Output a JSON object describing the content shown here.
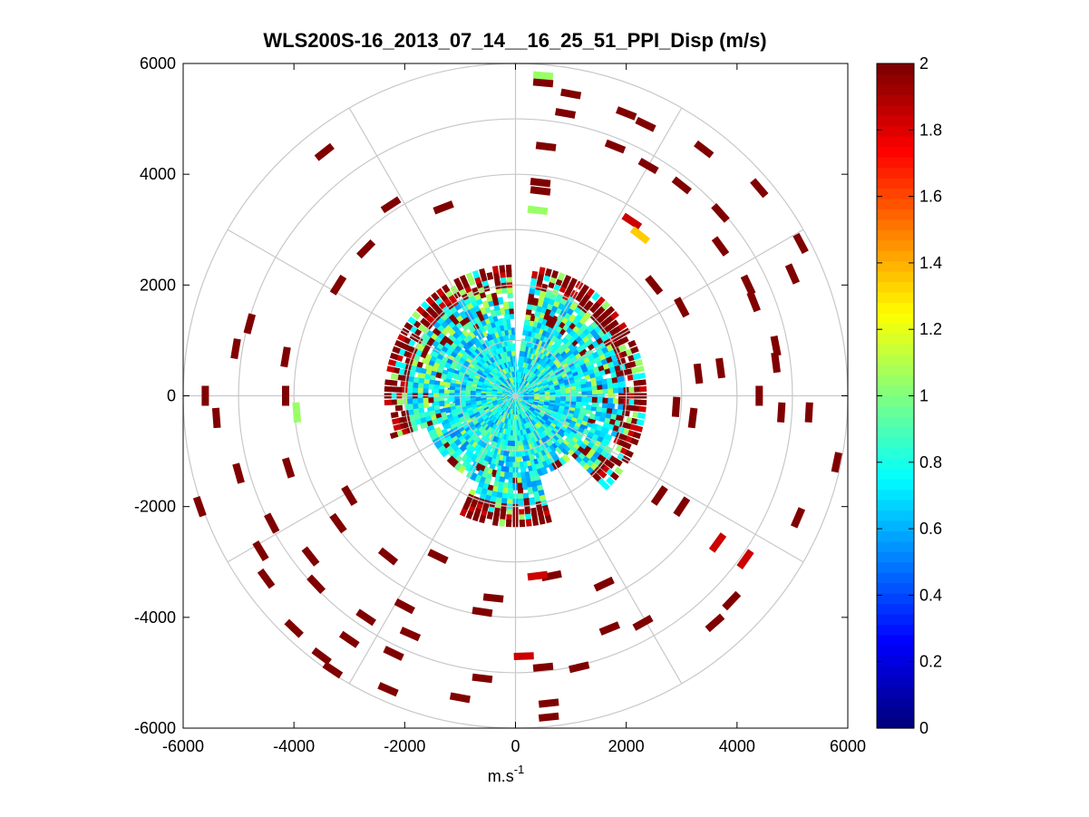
{
  "chart_data": {
    "type": "polar-ppi-scatter",
    "title": "WLS200S-16_2013_07_14__16_25_51_PPI_Disp (m/s)",
    "xlabel": "m.s",
    "xlabel_superscript": "-1",
    "ylabel": "",
    "xlim": [
      -6000,
      6000
    ],
    "ylim": [
      -6000,
      6000
    ],
    "x_ticks": [
      -6000,
      -4000,
      -2000,
      0,
      2000,
      4000,
      6000
    ],
    "y_ticks": [
      -6000,
      -4000,
      -2000,
      0,
      2000,
      4000,
      6000
    ],
    "polar_grid": {
      "ring_radii": [
        1000,
        2000,
        3000,
        4000,
        5000,
        6000
      ],
      "spoke_angles_deg": [
        0,
        30,
        60,
        90,
        120,
        150,
        180,
        210,
        240,
        270,
        300,
        330
      ]
    },
    "colorbar": {
      "colormap": "jet",
      "range": [
        0,
        2
      ],
      "ticks": [
        "0",
        "0.2",
        "0.4",
        "0.6",
        "0.8",
        "1",
        "1.2",
        "1.4",
        "1.6",
        "1.8",
        "2"
      ]
    },
    "inner_field": {
      "description": "dense near-field returns, mostly 0.6-0.9 m/s",
      "max_range_m": 2400,
      "typical_value": 0.75,
      "edge_values": [
        1.0,
        1.9,
        2.0
      ]
    },
    "sparse_returns": [
      {
        "x": 500,
        "y": 5780,
        "v": 1.05
      },
      {
        "x": 500,
        "y": 5650,
        "v": 2.0
      },
      {
        "x": 1000,
        "y": 5450,
        "v": 2.0
      },
      {
        "x": 900,
        "y": 5100,
        "v": 2.0
      },
      {
        "x": 2000,
        "y": 5100,
        "v": 2.0
      },
      {
        "x": 2350,
        "y": 4900,
        "v": 2.0
      },
      {
        "x": 550,
        "y": 4500,
        "v": 2.0
      },
      {
        "x": 1800,
        "y": 4500,
        "v": 2.0
      },
      {
        "x": 2400,
        "y": 4150,
        "v": 2.0
      },
      {
        "x": 3400,
        "y": 4450,
        "v": 2.0
      },
      {
        "x": -3450,
        "y": 4400,
        "v": 2.0
      },
      {
        "x": 4400,
        "y": 3750,
        "v": 2.0
      },
      {
        "x": 3000,
        "y": 3800,
        "v": 2.0
      },
      {
        "x": 450,
        "y": 3850,
        "v": 2.0
      },
      {
        "x": 450,
        "y": 3700,
        "v": 2.0
      },
      {
        "x": 400,
        "y": 3350,
        "v": 1.05
      },
      {
        "x": -2250,
        "y": 3450,
        "v": 2.0
      },
      {
        "x": -1300,
        "y": 3400,
        "v": 2.0
      },
      {
        "x": 2100,
        "y": 3150,
        "v": 1.85
      },
      {
        "x": 2250,
        "y": 2900,
        "v": 1.35
      },
      {
        "x": 3700,
        "y": 3300,
        "v": 2.0
      },
      {
        "x": 5150,
        "y": 2750,
        "v": 2.0
      },
      {
        "x": 3700,
        "y": 2700,
        "v": 2.0
      },
      {
        "x": -2700,
        "y": 2650,
        "v": 2.0
      },
      {
        "x": -3200,
        "y": 2000,
        "v": 2.0
      },
      {
        "x": 5000,
        "y": 2200,
        "v": 2.0
      },
      {
        "x": 4200,
        "y": 2000,
        "v": 2.0
      },
      {
        "x": 2500,
        "y": 2000,
        "v": 2.0
      },
      {
        "x": 4300,
        "y": 1700,
        "v": 2.0
      },
      {
        "x": -4800,
        "y": 1300,
        "v": 2.0
      },
      {
        "x": 3000,
        "y": 1600,
        "v": 2.0
      },
      {
        "x": 4700,
        "y": 900,
        "v": 2.0
      },
      {
        "x": 4700,
        "y": 600,
        "v": 2.0
      },
      {
        "x": -5050,
        "y": 850,
        "v": 2.0
      },
      {
        "x": -4150,
        "y": 700,
        "v": 2.0
      },
      {
        "x": 3700,
        "y": 500,
        "v": 2.0
      },
      {
        "x": 3300,
        "y": 400,
        "v": 2.0
      },
      {
        "x": -5600,
        "y": 0,
        "v": 2.0
      },
      {
        "x": -4150,
        "y": 0,
        "v": 2.0
      },
      {
        "x": -3950,
        "y": -300,
        "v": 1.05
      },
      {
        "x": -5400,
        "y": -400,
        "v": 2.0
      },
      {
        "x": 4400,
        "y": 0,
        "v": 2.0
      },
      {
        "x": 4800,
        "y": -300,
        "v": 2.0
      },
      {
        "x": 5300,
        "y": -300,
        "v": 2.0
      },
      {
        "x": 2900,
        "y": -200,
        "v": 2.0
      },
      {
        "x": 3200,
        "y": -400,
        "v": 2.0
      },
      {
        "x": 5800,
        "y": -1200,
        "v": 2.0
      },
      {
        "x": -5000,
        "y": -1400,
        "v": 2.0
      },
      {
        "x": -4100,
        "y": -1300,
        "v": 2.0
      },
      {
        "x": -5700,
        "y": -2000,
        "v": 2.0
      },
      {
        "x": -4400,
        "y": -2300,
        "v": 2.0
      },
      {
        "x": -3200,
        "y": -2300,
        "v": 2.0
      },
      {
        "x": -3000,
        "y": -1800,
        "v": 2.0
      },
      {
        "x": 3000,
        "y": -2000,
        "v": 2.0
      },
      {
        "x": 2600,
        "y": -1800,
        "v": 2.0
      },
      {
        "x": 5100,
        "y": -2200,
        "v": 2.0
      },
      {
        "x": 3650,
        "y": -2650,
        "v": 1.85
      },
      {
        "x": 4150,
        "y": -2950,
        "v": 1.85
      },
      {
        "x": -4600,
        "y": -2800,
        "v": 2.0
      },
      {
        "x": -3700,
        "y": -2900,
        "v": 2.0
      },
      {
        "x": -2300,
        "y": -2900,
        "v": 2.0
      },
      {
        "x": -1400,
        "y": -2900,
        "v": 2.0
      },
      {
        "x": -4500,
        "y": -3300,
        "v": 2.0
      },
      {
        "x": -3600,
        "y": -3400,
        "v": 2.0
      },
      {
        "x": 650,
        "y": -3250,
        "v": 2.0
      },
      {
        "x": 400,
        "y": -3250,
        "v": 1.85
      },
      {
        "x": 1600,
        "y": -3400,
        "v": 2.0
      },
      {
        "x": 3900,
        "y": -3700,
        "v": 2.0
      },
      {
        "x": 3600,
        "y": -4100,
        "v": 2.0
      },
      {
        "x": -2000,
        "y": -3800,
        "v": 2.0
      },
      {
        "x": -2700,
        "y": -4000,
        "v": 2.0
      },
      {
        "x": -4000,
        "y": -4200,
        "v": 2.0
      },
      {
        "x": -3000,
        "y": -4400,
        "v": 2.0
      },
      {
        "x": -1900,
        "y": -4300,
        "v": 2.0
      },
      {
        "x": -600,
        "y": -3900,
        "v": 2.0
      },
      {
        "x": -400,
        "y": -3650,
        "v": 2.0
      },
      {
        "x": 1700,
        "y": -4200,
        "v": 2.0
      },
      {
        "x": 2300,
        "y": -4100,
        "v": 2.0
      },
      {
        "x": -3500,
        "y": -4700,
        "v": 2.0
      },
      {
        "x": -2200,
        "y": -4650,
        "v": 2.0
      },
      {
        "x": 150,
        "y": -4700,
        "v": 1.85
      },
      {
        "x": 500,
        "y": -4900,
        "v": 2.0
      },
      {
        "x": 1150,
        "y": -4900,
        "v": 2.0
      },
      {
        "x": -3300,
        "y": -4950,
        "v": 2.0
      },
      {
        "x": -600,
        "y": -5100,
        "v": 2.0
      },
      {
        "x": -2300,
        "y": -5300,
        "v": 2.0
      },
      {
        "x": -1000,
        "y": -5450,
        "v": 2.0
      },
      {
        "x": 600,
        "y": -5550,
        "v": 2.0
      },
      {
        "x": 600,
        "y": -5800,
        "v": 2.0
      }
    ]
  }
}
